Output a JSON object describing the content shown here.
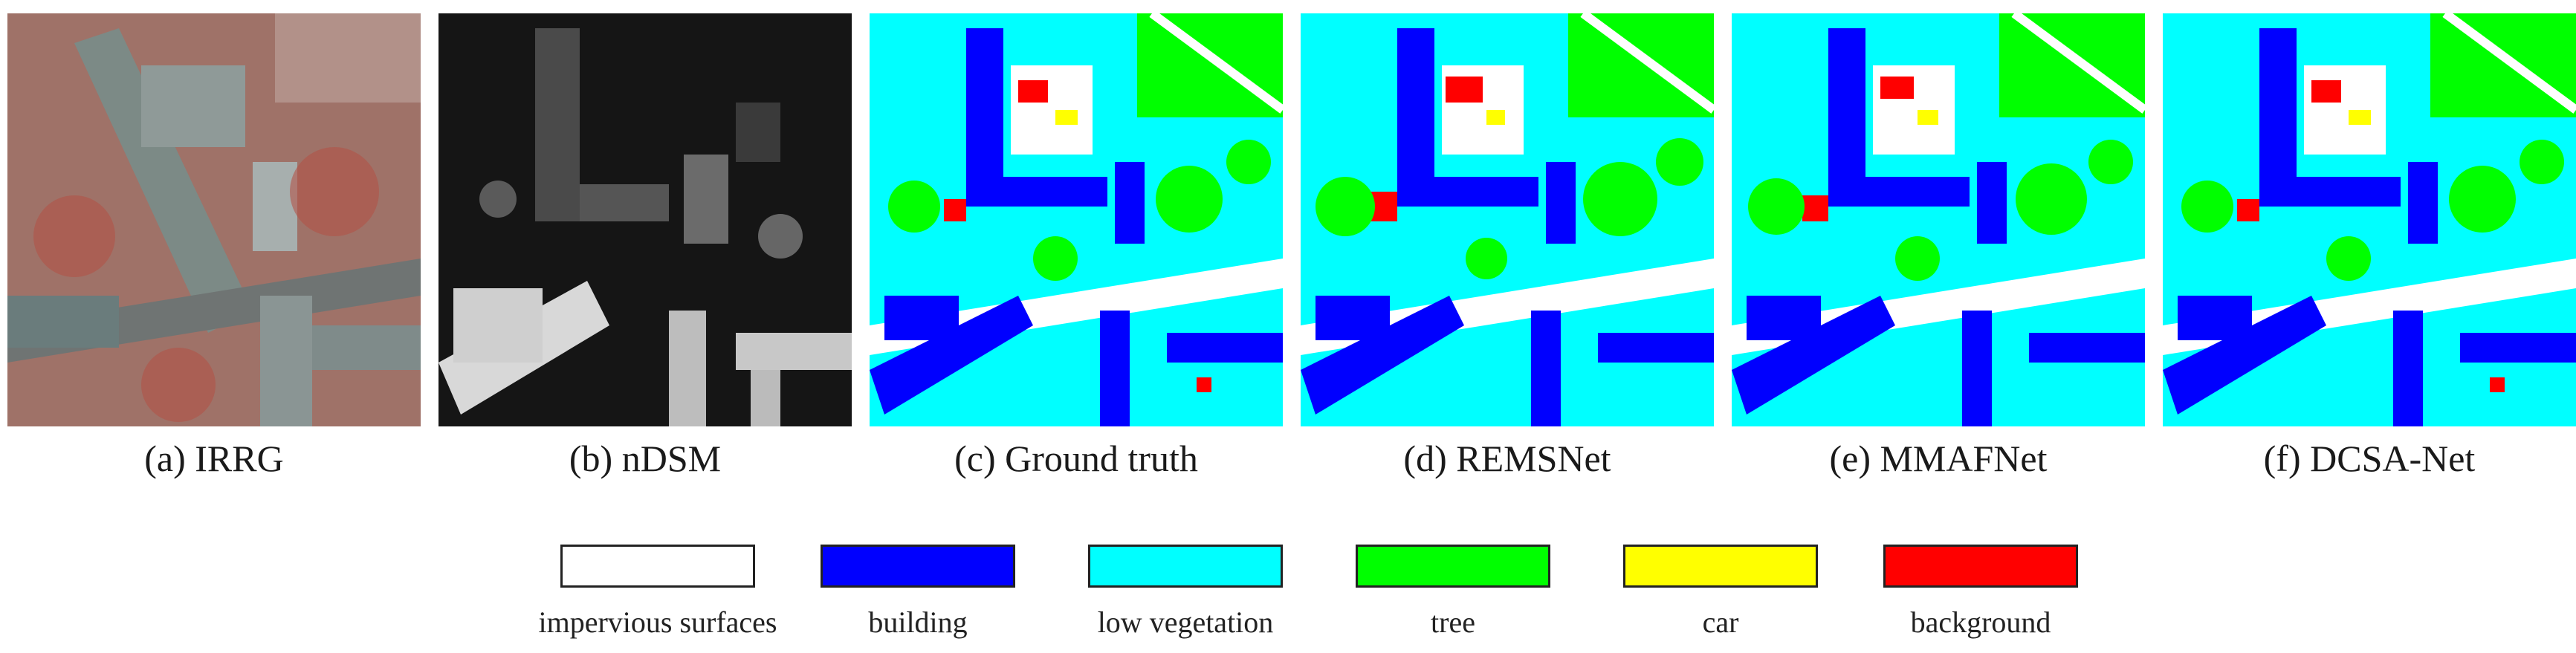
{
  "figure": {
    "panels": [
      {
        "id": "a",
        "caption": "(a) IRRG"
      },
      {
        "id": "b",
        "caption": "(b) nDSM"
      },
      {
        "id": "c",
        "caption": "(c) Ground truth"
      },
      {
        "id": "d",
        "caption": "(d) REMSNet"
      },
      {
        "id": "e",
        "caption": "(e) MMAFNet"
      },
      {
        "id": "f",
        "caption": "(f) DCSA-Net"
      }
    ],
    "legend": [
      {
        "label": "impervious surfaces",
        "color": "#ffffff"
      },
      {
        "label": "building",
        "color": "#0000ff"
      },
      {
        "label": "low vegetation",
        "color": "#00ffff"
      },
      {
        "label": "tree",
        "color": "#00ff00"
      },
      {
        "label": "car",
        "color": "#ffff00"
      },
      {
        "label": "background",
        "color": "#ff0000"
      }
    ]
  }
}
